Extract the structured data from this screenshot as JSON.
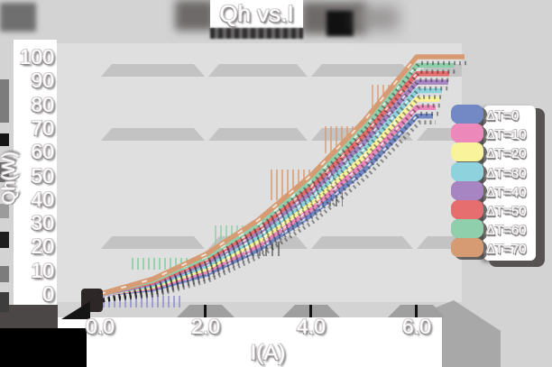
{
  "title": "Qh vs.I",
  "axes": {
    "x_label": "I(A)",
    "y_label": "Qh(W)",
    "x_ticks": [
      "0.0",
      "2.0",
      "4.0",
      "6.0"
    ],
    "y_ticks": [
      "0",
      "10",
      "20",
      "30",
      "40",
      "50",
      "60",
      "70",
      "80",
      "90",
      "100"
    ]
  },
  "chart_data": {
    "type": "line",
    "title": "Qh vs.I",
    "xlabel": "I(A)",
    "ylabel": "Qh(W)",
    "xlim": [
      0,
      6.9
    ],
    "ylim": [
      0,
      100
    ],
    "grid": "ghosted horizontal bands",
    "legend_position": "right",
    "x": [
      0,
      1,
      2,
      3,
      4,
      5,
      6
    ],
    "series": [
      {
        "name": "ΔT=0",
        "color": "#7289c6",
        "values": [
          0,
          2.1,
          8.3,
          18.8,
          33.3,
          52.1,
          75.0
        ]
      },
      {
        "name": "ΔT=10",
        "color": "#ec89ba",
        "values": [
          0,
          2.7,
          9.5,
          20.5,
          35.7,
          55.1,
          78.6
        ]
      },
      {
        "name": "ΔT=20",
        "color": "#f9f39c",
        "values": [
          0,
          3.3,
          10.7,
          22.3,
          38.1,
          58.0,
          82.1
        ]
      },
      {
        "name": "ΔT=30",
        "color": "#8ed2dd",
        "values": [
          0,
          3.9,
          11.9,
          24.1,
          40.5,
          61.0,
          85.7
        ]
      },
      {
        "name": "ΔT=40",
        "color": "#a784c2",
        "values": [
          0,
          4.5,
          13.1,
          26.0,
          42.9,
          64.0,
          89.3
        ]
      },
      {
        "name": "ΔT=50",
        "color": "#e66e6e",
        "values": [
          0,
          5.1,
          14.3,
          27.7,
          45.2,
          67.0,
          92.9
        ]
      },
      {
        "name": "ΔT=60",
        "color": "#90cfab",
        "values": [
          0,
          5.7,
          15.5,
          29.5,
          47.6,
          69.9,
          96.4
        ]
      },
      {
        "name": "ΔT=70",
        "color": "#d69b72",
        "values": [
          0,
          6.3,
          16.7,
          31.2,
          50.0,
          72.9,
          100.0
        ]
      }
    ]
  },
  "colors": {
    "background": "#d3d3d3",
    "plot_background": "#dfdfdf",
    "ghost_band": "#c3c3c3",
    "strip_white": "#ffffff",
    "text": "#ffffff",
    "shadow_dark": "#5f5b5b"
  }
}
